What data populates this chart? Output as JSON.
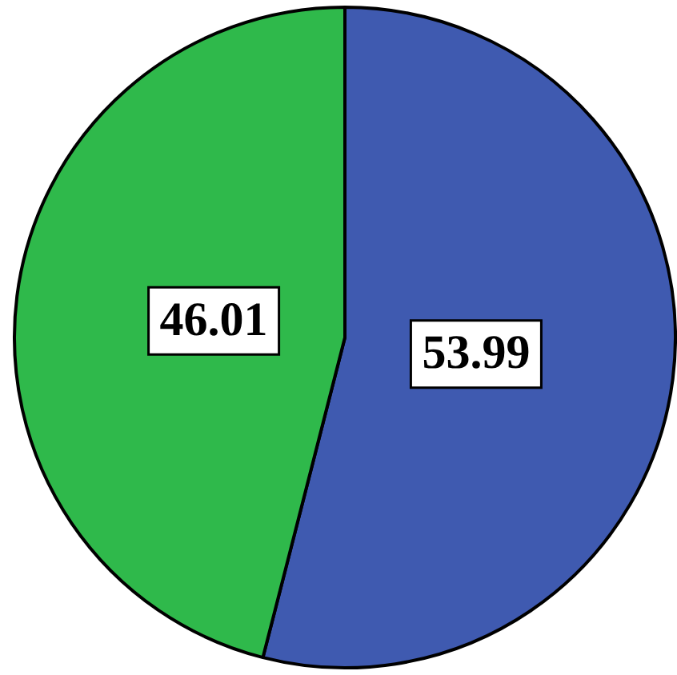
{
  "chart_data": {
    "type": "pie",
    "categories": [
      null,
      null
    ],
    "values": [
      53.99,
      46.01
    ],
    "colors": [
      "#3f5ab0",
      "#2fb94b"
    ],
    "data_labels": true,
    "legend": false
  }
}
